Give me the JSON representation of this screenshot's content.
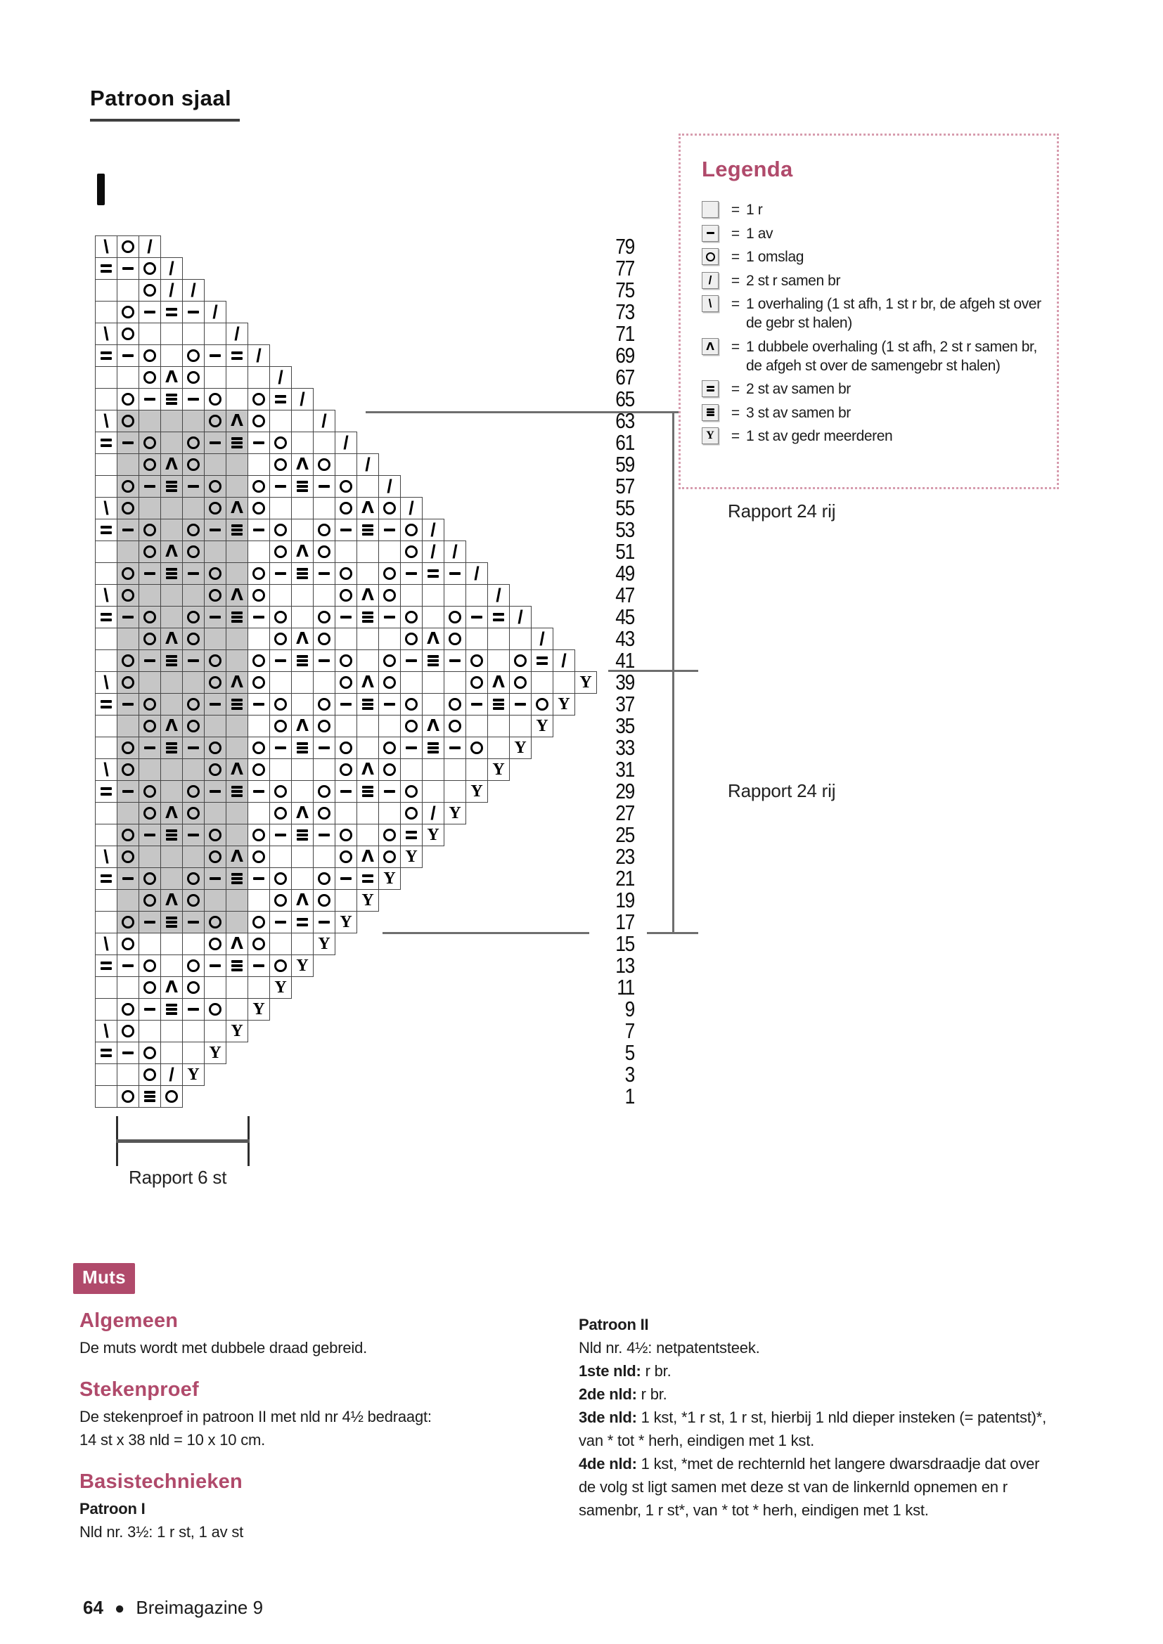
{
  "header": {
    "title": "Patroon sjaal",
    "chart_mark": "I"
  },
  "chart": {
    "gray_cols_from": 2,
    "gray_cols_to": 7,
    "gray_row_max": 63,
    "gray_row_min": 17,
    "symbol_key": {
      "k": "1 r",
      "p": "1 av",
      "o": "1 omslag",
      "/": "2 st r samen br",
      "\\": "1 overhaling",
      "A": "1 dubbele overhaling",
      "2": "2 st av samen br",
      "3": "3 st av samen br",
      "y": "1 st av gedr meerderen"
    },
    "rows": [
      {
        "num": 79,
        "cells": "\\o/"
      },
      {
        "num": 77,
        "cells": "2po/"
      },
      {
        "num": 75,
        "cells": "kko//"
      },
      {
        "num": 73,
        "cells": "kop2p/"
      },
      {
        "num": 71,
        "cells": "\\okkkk/"
      },
      {
        "num": 69,
        "cells": "2pokop2/"
      },
      {
        "num": 67,
        "cells": "kkoAokkk/"
      },
      {
        "num": 65,
        "cells": "kop3poko2/"
      },
      {
        "num": 63,
        "cells": "\\okkkoAokk/"
      },
      {
        "num": 61,
        "cells": "2pokop3pokk/"
      },
      {
        "num": 59,
        "cells": "kkoAokkkoAok/"
      },
      {
        "num": 57,
        "cells": "kop3pokop3pok/"
      },
      {
        "num": 55,
        "cells": "\\okkkoAokkkoAo/"
      },
      {
        "num": 53,
        "cells": "2pokop3pokop3po/"
      },
      {
        "num": 51,
        "cells": "kkoAokkkoAokkko//"
      },
      {
        "num": 49,
        "cells": "kop3pokop3pokop2p/"
      },
      {
        "num": 47,
        "cells": "\\okkkoAokkkoAokkkk/"
      },
      {
        "num": 45,
        "cells": "2pokop3pokop3pokop2/"
      },
      {
        "num": 43,
        "cells": "kkoAokkkoAokkkoAokkk/"
      },
      {
        "num": 41,
        "cells": "kop3pokop3pokop3poko2/"
      },
      {
        "num": 39,
        "cells": "\\okkkoAokkkoAokkkoAokky"
      },
      {
        "num": 37,
        "cells": "2pokop3pokop3pokop3poy"
      },
      {
        "num": 35,
        "cells": "kkoAokkkoAokkkoAokkky"
      },
      {
        "num": 33,
        "cells": "kop3pokop3pokop3poky"
      },
      {
        "num": 31,
        "cells": "\\okkkoAokkkoAokkkky"
      },
      {
        "num": 29,
        "cells": "2pokop3pokop3pokky"
      },
      {
        "num": 27,
        "cells": "kkoAokkkoAokkko/y"
      },
      {
        "num": 25,
        "cells": "kop3pokop3poko2y"
      },
      {
        "num": 23,
        "cells": "\\okkkoAokkkoAoy"
      },
      {
        "num": 21,
        "cells": "2pokop3pokop2y"
      },
      {
        "num": 19,
        "cells": "kkoAokkkoAoky"
      },
      {
        "num": 17,
        "cells": "kop3pokop2py"
      },
      {
        "num": 15,
        "cells": "\\okkkoAokky"
      },
      {
        "num": 13,
        "cells": "2pokop3poy"
      },
      {
        "num": 11,
        "cells": "kkoAokkky"
      },
      {
        "num": 9,
        "cells": "kop3poky"
      },
      {
        "num": 7,
        "cells": "\\okkkky"
      },
      {
        "num": 5,
        "cells": "2pokky"
      },
      {
        "num": 3,
        "cells": "kko/y"
      },
      {
        "num": 1,
        "cells": "ko3o"
      }
    ]
  },
  "legend": {
    "title": "Legenda",
    "items": [
      {
        "sym": "k",
        "text": "1 r"
      },
      {
        "sym": "p",
        "text": "1 av"
      },
      {
        "sym": "o",
        "text": "1 omslag"
      },
      {
        "sym": "/",
        "text": "2 st r samen br"
      },
      {
        "sym": "\\",
        "text": "1 overhaling (1 st afh, 1 st r br, de afgeh st over de gebr st halen)"
      },
      {
        "sym": "A",
        "text": "1 dubbele overhaling (1 st afh, 2 st r samen br, de afgeh st over de samengebr st halen)"
      },
      {
        "sym": "2",
        "text": "2 st av samen br"
      },
      {
        "sym": "3",
        "text": "3 st av samen br"
      },
      {
        "sym": "y",
        "text": "1 st av gedr meerderen"
      }
    ]
  },
  "annotations": {
    "rapport_rij_1": "Rapport 24 rij",
    "rapport_rij_2": "Rapport 24 rij",
    "rapport_st": "Rapport 6 st"
  },
  "muts_badge": "Muts",
  "left_col": {
    "h1": "Algemeen",
    "p1": "De muts wordt met dubbele draad gebreid.",
    "h2": "Stekenproef",
    "p2": "De stekenproef in patroon II met nld nr 4½ bedraagt: 14 st x 38 nld = 10 x 10 cm.",
    "h3": "Basistechnieken",
    "p3_label": "Patroon I",
    "p3_text": "Nld nr. 3½: 1 r st, 1 av st"
  },
  "right_col": {
    "p0_label": "Patroon II",
    "p1": "Nld nr. 4½: netpatentsteek.",
    "p2_label": "1ste nld:",
    "p2_text": "r br.",
    "p3_label": "2de nld:",
    "p3_text": "r br.",
    "p4_label": "3de nld:",
    "p4_text": "1 kst, *1 r st, 1 r st, hierbij 1 nld dieper insteken (= patentst)*, van * tot * herh, eindigen met 1 kst.",
    "p5_label": "4de nld:",
    "p5_text": "1 kst, *met de rechternld het langere dwarsdraadje dat over de volg st ligt samen met deze st van de linkernld opnemen en r samenbr, 1 r st*, van * tot * herh, eindigen met 1 kst."
  },
  "footer": {
    "page_number": "64",
    "magazine": "Breimagazine 9"
  },
  "colors": {
    "accent": "#b04a6b",
    "dot_border": "#d79cae",
    "chart_gray": "#c6c6c6"
  }
}
